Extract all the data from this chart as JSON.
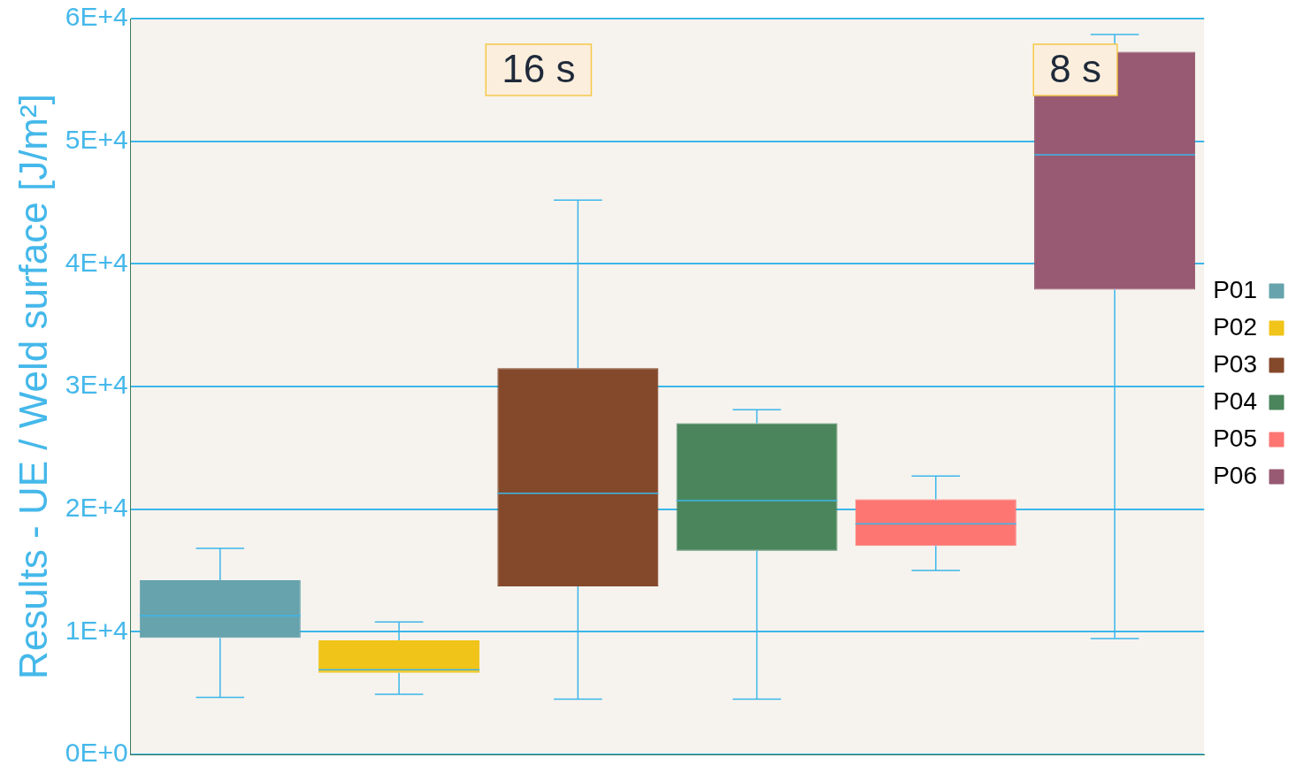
{
  "chart_data": {
    "type": "box",
    "ylabel": "Results - UE / Weld surface [J/m²]",
    "categories": [
      null,
      null,
      null,
      null,
      null,
      null
    ],
    "series": [
      {
        "name": "P01",
        "color": "#66a3ad",
        "boxes": [
          {
            "low": 4650,
            "q1": 9500,
            "median": 11300,
            "q3": 14200,
            "high": 16800
          },
          null,
          null,
          null,
          null,
          null
        ]
      },
      {
        "name": "P02",
        "color": "#f0c419",
        "boxes": [
          null,
          {
            "low": 4900,
            "q1": 6650,
            "median": 6900,
            "q3": 9300,
            "high": 10800
          },
          null,
          null,
          null,
          null
        ]
      },
      {
        "name": "P03",
        "color": "#84492b",
        "boxes": [
          null,
          null,
          {
            "low": 4500,
            "q1": 13700,
            "median": 21300,
            "q3": 31500,
            "high": 45200
          },
          null,
          null,
          null
        ]
      },
      {
        "name": "P04",
        "color": "#4a855c",
        "boxes": [
          null,
          null,
          null,
          {
            "low": 4500,
            "q1": 16600,
            "median": 20700,
            "q3": 27000,
            "high": 28100
          },
          null,
          null
        ]
      },
      {
        "name": "P05",
        "color": "#fd7672",
        "boxes": [
          null,
          null,
          null,
          null,
          {
            "low": 15000,
            "q1": 17000,
            "median": 18800,
            "q3": 20800,
            "high": 22700
          },
          null
        ]
      },
      {
        "name": "P06",
        "color": "#975a72",
        "boxes": [
          null,
          null,
          null,
          null,
          null,
          {
            "low": 9450,
            "q1": 37900,
            "median": 48900,
            "q3": 57300,
            "high": 58700
          }
        ]
      }
    ],
    "ylim": [
      0,
      60000
    ],
    "yticks": [
      {
        "value": 0,
        "label": "0E+0"
      },
      {
        "value": 10000,
        "label": "1E+4"
      },
      {
        "value": 20000,
        "label": "2E+4"
      },
      {
        "value": 30000,
        "label": "3E+4"
      },
      {
        "value": 40000,
        "label": "4E+4"
      },
      {
        "value": 50000,
        "label": "5E+4"
      },
      {
        "value": 60000,
        "label": "6E+4"
      }
    ],
    "grid": "y",
    "legend": "right",
    "tick_labels": "y",
    "annotations": [
      "16 s",
      "8 s"
    ]
  }
}
